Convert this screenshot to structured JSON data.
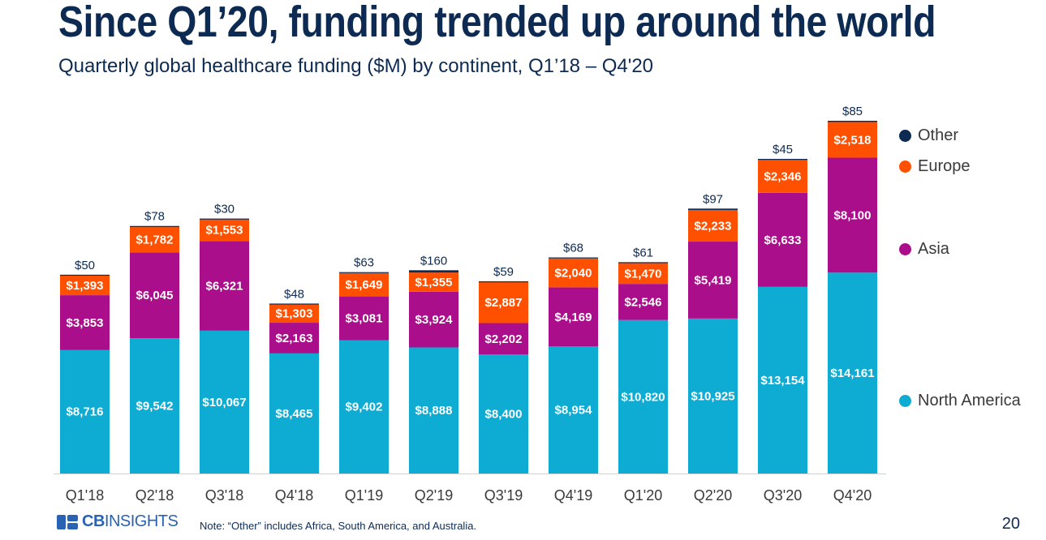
{
  "header": {
    "title": "Since Q1’20, funding trended up around the world",
    "subtitle": "Quarterly global healthcare funding ($M) by continent, Q1’18 – Q4'20"
  },
  "chart_data": {
    "type": "bar",
    "stacked": true,
    "title": "Since Q1’20, funding trended up around the world",
    "subtitle": "Quarterly global healthcare funding ($M) by continent, Q1’18 – Q4'20",
    "xlabel": "",
    "ylabel": "",
    "ylim": [
      0,
      26000
    ],
    "grid": false,
    "legend_position": "right",
    "categories": [
      "Q1'18",
      "Q2'18",
      "Q3'18",
      "Q4'18",
      "Q1'19",
      "Q2'19",
      "Q3'19",
      "Q4'19",
      "Q1'20",
      "Q2'20",
      "Q3'20",
      "Q4'20"
    ],
    "series": [
      {
        "name": "North America",
        "color": "#0eabd3",
        "values": [
          8716,
          9542,
          10067,
          8465,
          9402,
          8888,
          8400,
          8954,
          10820,
          10925,
          13154,
          14161
        ],
        "labels": [
          "$8,716",
          "$9,542",
          "$10,067",
          "$8,465",
          "$9,402",
          "$8,888",
          "$8,400",
          "$8,954",
          "$10,820",
          "$10,925",
          "$13,154",
          "$14,161"
        ]
      },
      {
        "name": "Asia",
        "color": "#ab0e8a",
        "values": [
          3853,
          6045,
          6321,
          2163,
          3081,
          3924,
          2202,
          4169,
          2546,
          5419,
          6633,
          8100
        ],
        "labels": [
          "$3,853",
          "$6,045",
          "$6,321",
          "$2,163",
          "$3,081",
          "$3,924",
          "$2,202",
          "$4,169",
          "$2,546",
          "$5,419",
          "$6,633",
          "$8,100"
        ]
      },
      {
        "name": "Europe",
        "color": "#ff5000",
        "values": [
          1393,
          1782,
          1553,
          1303,
          1649,
          1355,
          2887,
          2040,
          1470,
          2233,
          2346,
          2518
        ],
        "labels": [
          "$1,393",
          "$1,782",
          "$1,553",
          "$1,303",
          "$1,649",
          "$1,355",
          "$2,887",
          "$2,040",
          "$1,470",
          "$2,233",
          "$2,346",
          "$2,518"
        ]
      },
      {
        "name": "Other",
        "color": "#0d2a52",
        "values": [
          50,
          78,
          30,
          48,
          63,
          160,
          59,
          68,
          61,
          97,
          45,
          85
        ],
        "labels": [
          "$50",
          "$78",
          "$30",
          "$48",
          "$63",
          "$160",
          "$59",
          "$68",
          "$61",
          "$97",
          "$45",
          "$85"
        ]
      }
    ]
  },
  "footer": {
    "logo_bold": "CB",
    "logo_thin": "INSIGHTS",
    "note": "Note: “Other” includes Africa, South America, and Australia.",
    "page_number": "20"
  }
}
